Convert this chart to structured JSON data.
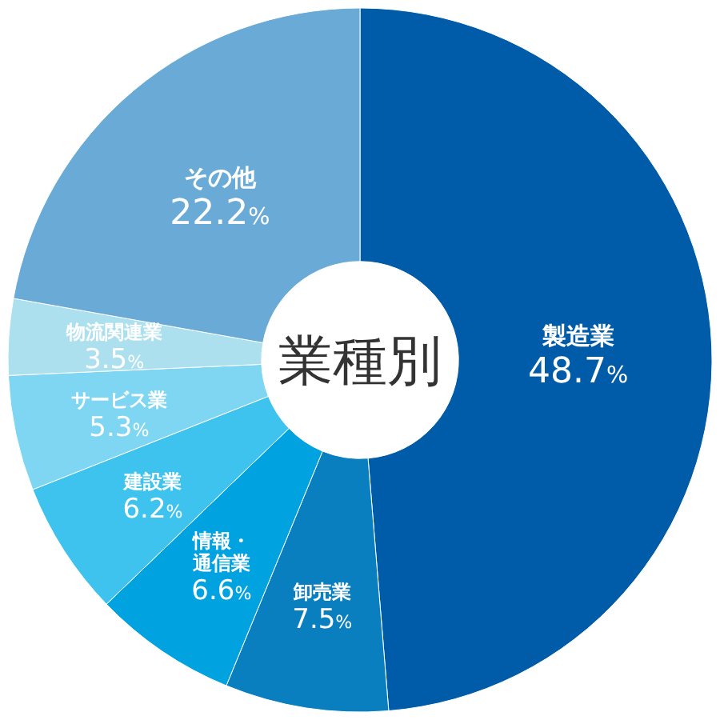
{
  "chart_data": {
    "type": "donut",
    "title": "業種別",
    "categories": [
      "製造業",
      "卸売業",
      "情報・通信業",
      "建設業",
      "サービス業",
      "物流関連業",
      "その他"
    ],
    "values": [
      48.7,
      7.5,
      6.6,
      6.2,
      5.3,
      3.5,
      22.2
    ],
    "colors": [
      "#005ca8",
      "#0a7fc0",
      "#00a2e0",
      "#3ec3ee",
      "#7ed6f2",
      "#ade0ef",
      "#6aaad6"
    ],
    "value_labels": [
      "48.7%",
      "7.5%",
      "6.6%",
      "6.2%",
      "5.3%",
      "3.5%",
      "22.2%"
    ]
  }
}
